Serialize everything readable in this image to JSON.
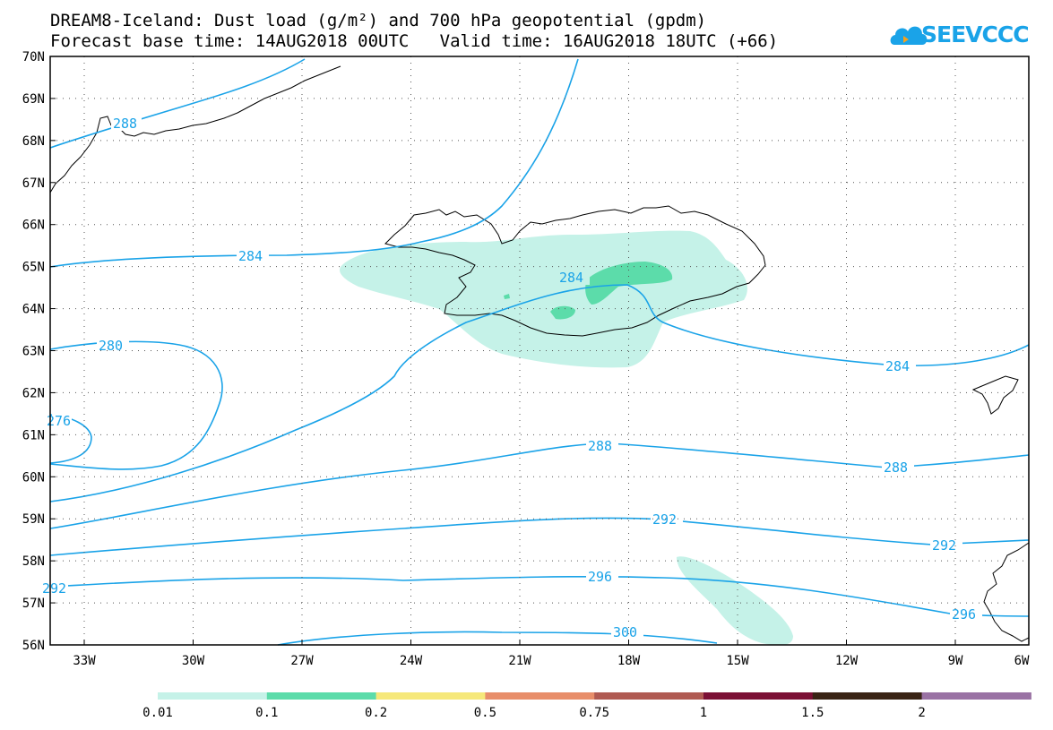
{
  "title_line1": "DREAM8-Iceland: Dust load (g/m²) and 700 hPa geopotential (gpdm)",
  "title_line2": "Forecast base time: 14AUG2018 00UTC   Valid time: 16AUG2018 18UTC (+66)",
  "logo_text": "SEEVCCC",
  "lat_labels": [
    "70N",
    "69N",
    "68N",
    "67N",
    "66N",
    "65N",
    "64N",
    "63N",
    "62N",
    "61N",
    "60N",
    "59N",
    "58N",
    "57N",
    "56N"
  ],
  "lon_labels": [
    "33W",
    "30W",
    "27W",
    "24W",
    "21W",
    "18W",
    "15W",
    "12W",
    "9W",
    "6W"
  ],
  "contour_labels": [
    "288",
    "284",
    "280",
    "276",
    "284",
    "284",
    "288",
    "288",
    "292",
    "292",
    "292",
    "296",
    "296",
    "300"
  ],
  "colorbar": {
    "labels": [
      "0.01",
      "0.1",
      "0.2",
      "0.5",
      "0.75",
      "1",
      "1.5",
      "2"
    ],
    "colors": [
      "#c5f2e8",
      "#5cdcaa",
      "#f6e87a",
      "#e88e6a",
      "#b05a52",
      "#7c1035",
      "#3a2415",
      "#9a72a4"
    ]
  },
  "colors": {
    "contour": "#1aa3e8",
    "coast": "#000000",
    "dust_low": "#c5f2e8",
    "dust_mid": "#5cdcaa"
  }
}
